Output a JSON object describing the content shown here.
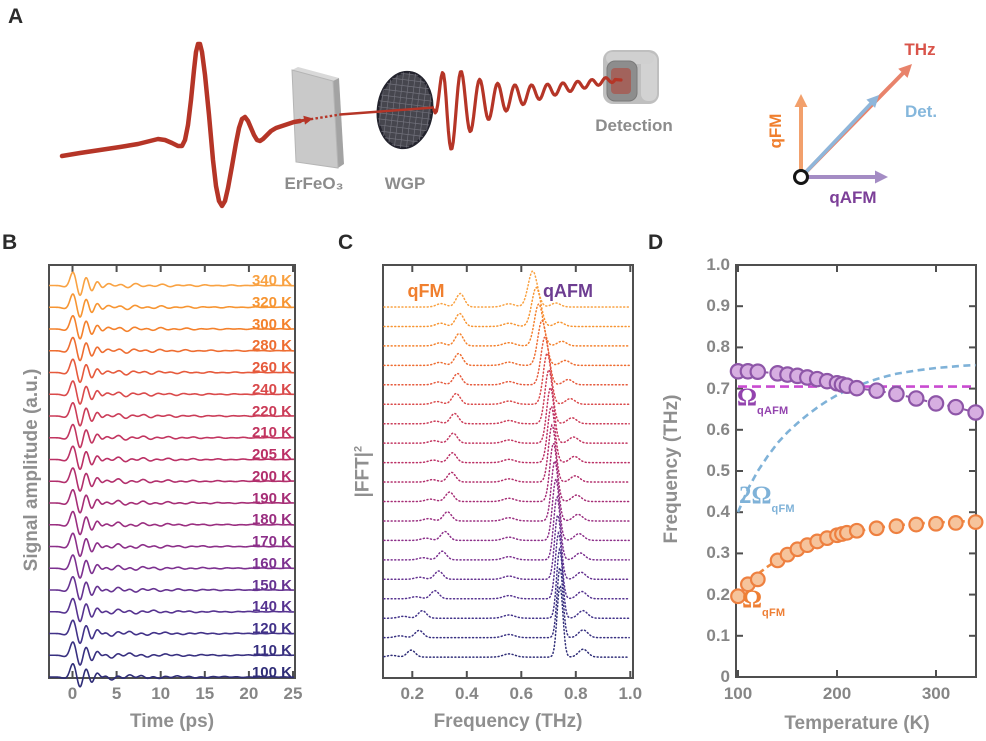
{
  "panels": {
    "a": "A",
    "b": "B",
    "c": "C",
    "d": "D"
  },
  "panel_a": {
    "crystal_label": "ErFeO₃",
    "polarizer_label": "WGP",
    "detector_label": "Detection",
    "beam_color": "#B53527",
    "vectors": {
      "thz": {
        "text": "THz",
        "label_color": "#D9544A",
        "arrow_color": "#E8836B"
      },
      "det": {
        "text": "Det.",
        "label_color": "#85B7DC",
        "arrow_color": "#8FB6DA"
      },
      "qfm": {
        "text": "qFM",
        "label_color": "#F07F2E",
        "arrow_color": "#F2A06C"
      },
      "qafm": {
        "text": "qAFM",
        "label_color": "#7C3F98",
        "arrow_color": "#A48CC4"
      }
    }
  },
  "styles": {
    "frame": "#4F4F4F",
    "tick_text": "#868686",
    "axis_text": "#8F8F8F",
    "panel_letter": "#2B2B2B"
  },
  "chart_data": [
    {
      "id": "panel_b",
      "type": "line",
      "xlabel": "Time (ps)",
      "ylabel": "Signal amplitude (a.u.)",
      "xticks": [
        "0",
        "5",
        "10",
        "15",
        "20",
        "25"
      ],
      "xlim": [
        -2.7,
        25.2
      ],
      "note": "19 vertically offset THz time-domain emission traces, 340 K (top) to 100 K (bottom)",
      "traces": [
        {
          "label": "340 K",
          "temperature": 340,
          "color": "#F9A242"
        },
        {
          "label": "320 K",
          "temperature": 320,
          "color": "#F79532"
        },
        {
          "label": "300 K",
          "temperature": 300,
          "color": "#F4812C"
        },
        {
          "label": "280 K",
          "temperature": 280,
          "color": "#EE6D31"
        },
        {
          "label": "260 K",
          "temperature": 260,
          "color": "#E65A3C"
        },
        {
          "label": "240 K",
          "temperature": 240,
          "color": "#DA4A4B"
        },
        {
          "label": "220 K",
          "temperature": 220,
          "color": "#CB3C58"
        },
        {
          "label": "210 K",
          "temperature": 210,
          "color": "#C23560"
        },
        {
          "label": "205 K",
          "temperature": 205,
          "color": "#BB3065"
        },
        {
          "label": "200 K",
          "temperature": 200,
          "color": "#B22F6C"
        },
        {
          "label": "190 K",
          "temperature": 190,
          "color": "#A62E76"
        },
        {
          "label": "180 K",
          "temperature": 180,
          "color": "#9A2E80"
        },
        {
          "label": "170 K",
          "temperature": 170,
          "color": "#8C2F89"
        },
        {
          "label": "160 K",
          "temperature": 160,
          "color": "#7D3190"
        },
        {
          "label": "150 K",
          "temperature": 150,
          "color": "#663391"
        },
        {
          "label": "140 K",
          "temperature": 140,
          "color": "#563390"
        },
        {
          "label": "120 K",
          "temperature": 120,
          "color": "#423289"
        },
        {
          "label": "110 K",
          "temperature": 110,
          "color": "#383080"
        },
        {
          "label": "100 K",
          "temperature": 100,
          "color": "#2F2D77"
        }
      ]
    },
    {
      "id": "panel_c",
      "type": "line",
      "xlabel": "Frequency (THz)",
      "ylabel": "|FFT|",
      "ylabel_sup": "2",
      "xticks": [
        "0.2",
        "0.4",
        "0.6",
        "0.8",
        "1.0"
      ],
      "xlim": [
        0.09,
        1.0
      ],
      "annotations": {
        "qfm": {
          "text": "qFM",
          "color": "#F07F2E"
        },
        "qafm": {
          "text": "qAFM",
          "color": "#6D3D91"
        }
      },
      "spectra": [
        {
          "temperature": 340,
          "qfm_peak_thz": 0.376,
          "qafm_peak_thz": 0.642
        },
        {
          "temperature": 320,
          "qfm_peak_thz": 0.374,
          "qafm_peak_thz": 0.655
        },
        {
          "temperature": 300,
          "qfm_peak_thz": 0.372,
          "qafm_peak_thz": 0.664
        },
        {
          "temperature": 280,
          "qfm_peak_thz": 0.37,
          "qafm_peak_thz": 0.676
        },
        {
          "temperature": 260,
          "qfm_peak_thz": 0.366,
          "qafm_peak_thz": 0.687
        },
        {
          "temperature": 240,
          "qfm_peak_thz": 0.361,
          "qafm_peak_thz": 0.695
        },
        {
          "temperature": 220,
          "qfm_peak_thz": 0.355,
          "qafm_peak_thz": 0.701
        },
        {
          "temperature": 210,
          "qfm_peak_thz": 0.35,
          "qafm_peak_thz": 0.707
        },
        {
          "temperature": 205,
          "qfm_peak_thz": 0.347,
          "qafm_peak_thz": 0.71
        },
        {
          "temperature": 200,
          "qfm_peak_thz": 0.344,
          "qafm_peak_thz": 0.713
        },
        {
          "temperature": 190,
          "qfm_peak_thz": 0.337,
          "qafm_peak_thz": 0.718
        },
        {
          "temperature": 180,
          "qfm_peak_thz": 0.329,
          "qafm_peak_thz": 0.723
        },
        {
          "temperature": 170,
          "qfm_peak_thz": 0.32,
          "qafm_peak_thz": 0.727
        },
        {
          "temperature": 160,
          "qfm_peak_thz": 0.31,
          "qafm_peak_thz": 0.731
        },
        {
          "temperature": 150,
          "qfm_peak_thz": 0.297,
          "qafm_peak_thz": 0.734
        },
        {
          "temperature": 140,
          "qfm_peak_thz": 0.283,
          "qafm_peak_thz": 0.737
        },
        {
          "temperature": 120,
          "qfm_peak_thz": 0.237,
          "qafm_peak_thz": 0.741
        },
        {
          "temperature": 110,
          "qfm_peak_thz": 0.225,
          "qafm_peak_thz": 0.742
        },
        {
          "temperature": 100,
          "qfm_peak_thz": 0.196,
          "qafm_peak_thz": 0.742
        }
      ]
    },
    {
      "id": "panel_d",
      "type": "scatter",
      "xlabel": "Temperature (K)",
      "ylabel": "Frequency (THz)",
      "xlim": [
        100,
        340
      ],
      "ylim": [
        0,
        1.0
      ],
      "xticks": [
        "100",
        "200",
        "300"
      ],
      "yticks": [
        "0",
        "0.1",
        "0.2",
        "0.3",
        "0.4",
        "0.5",
        "0.6",
        "0.7",
        "0.8",
        "0.9",
        "1.0"
      ],
      "series": [
        {
          "name": "qAFM mode frequency",
          "marker": "circle",
          "fill": "#D7AEE1",
          "edge": "#8E56A8",
          "points": [
            [
              100,
              0.742
            ],
            [
              110,
              0.742
            ],
            [
              120,
              0.741
            ],
            [
              140,
              0.737
            ],
            [
              150,
              0.734
            ],
            [
              160,
              0.731
            ],
            [
              170,
              0.727
            ],
            [
              180,
              0.723
            ],
            [
              190,
              0.718
            ],
            [
              200,
              0.713
            ],
            [
              205,
              0.71
            ],
            [
              210,
              0.707
            ],
            [
              220,
              0.701
            ],
            [
              240,
              0.695
            ],
            [
              260,
              0.687
            ],
            [
              280,
              0.676
            ],
            [
              300,
              0.664
            ],
            [
              320,
              0.655
            ],
            [
              340,
              0.642
            ]
          ]
        },
        {
          "name": "qFM mode frequency",
          "marker": "circle",
          "fill": "#F6C49C",
          "edge": "#EE8040",
          "points": [
            [
              100,
              0.196
            ],
            [
              110,
              0.225
            ],
            [
              120,
              0.237
            ],
            [
              140,
              0.283
            ],
            [
              150,
              0.297
            ],
            [
              160,
              0.31
            ],
            [
              170,
              0.32
            ],
            [
              180,
              0.329
            ],
            [
              190,
              0.337
            ],
            [
              200,
              0.344
            ],
            [
              205,
              0.347
            ],
            [
              210,
              0.35
            ],
            [
              220,
              0.355
            ],
            [
              240,
              0.361
            ],
            [
              260,
              0.366
            ],
            [
              280,
              0.37
            ],
            [
              300,
              0.372
            ],
            [
              320,
              0.374
            ],
            [
              340,
              0.376
            ]
          ]
        }
      ],
      "fits": [
        {
          "name": "omega_qafm_fit",
          "style": "dashed",
          "color": "#C94BD1",
          "points": [
            [
              100,
              0.705
            ],
            [
              340,
              0.705
            ]
          ]
        },
        {
          "name": "two_omega_qfm_fit",
          "style": "dashed",
          "color": "#7FB2D8",
          "points": [
            [
              100,
              0.4
            ],
            [
              110,
              0.456
            ],
            [
              120,
              0.5
            ],
            [
              130,
              0.536
            ],
            [
              140,
              0.568
            ],
            [
              150,
              0.594
            ],
            [
              160,
              0.616
            ],
            [
              170,
              0.636
            ],
            [
              180,
              0.654
            ],
            [
              190,
              0.67
            ],
            [
              200,
              0.684
            ],
            [
              210,
              0.696
            ],
            [
              220,
              0.706
            ],
            [
              230,
              0.715
            ],
            [
              240,
              0.723
            ],
            [
              250,
              0.73
            ],
            [
              260,
              0.736
            ],
            [
              270,
              0.74
            ],
            [
              280,
              0.744
            ],
            [
              290,
              0.747
            ],
            [
              300,
              0.75
            ],
            [
              310,
              0.752
            ],
            [
              320,
              0.754
            ],
            [
              330,
              0.756
            ],
            [
              340,
              0.757
            ]
          ]
        },
        {
          "name": "omega_qfm_fit",
          "style": "dashed",
          "color": "#EF8A40",
          "points": [
            [
              100,
              0.2
            ],
            [
              110,
              0.228
            ],
            [
              120,
              0.25
            ],
            [
              130,
              0.268
            ],
            [
              140,
              0.284
            ],
            [
              150,
              0.297
            ],
            [
              160,
              0.308
            ],
            [
              170,
              0.318
            ],
            [
              180,
              0.327
            ],
            [
              190,
              0.335
            ],
            [
              200,
              0.342
            ],
            [
              210,
              0.348
            ],
            [
              220,
              0.353
            ],
            [
              230,
              0.358
            ],
            [
              240,
              0.362
            ],
            [
              250,
              0.365
            ],
            [
              260,
              0.368
            ],
            [
              270,
              0.37
            ],
            [
              280,
              0.372
            ],
            [
              290,
              0.374
            ],
            [
              300,
              0.375
            ],
            [
              310,
              0.376
            ],
            [
              320,
              0.377
            ],
            [
              330,
              0.378
            ],
            [
              340,
              0.379
            ]
          ]
        }
      ],
      "labels": {
        "qafm": {
          "main": "Ω",
          "sub": "qAFM",
          "color": "#9343AE"
        },
        "two_qfm": {
          "main": "2Ω",
          "sub": "qFM",
          "color": "#7FB2D8"
        },
        "qfm": {
          "main": "Ω",
          "sub": "qFM",
          "color": "#EE7F35"
        }
      }
    }
  ]
}
